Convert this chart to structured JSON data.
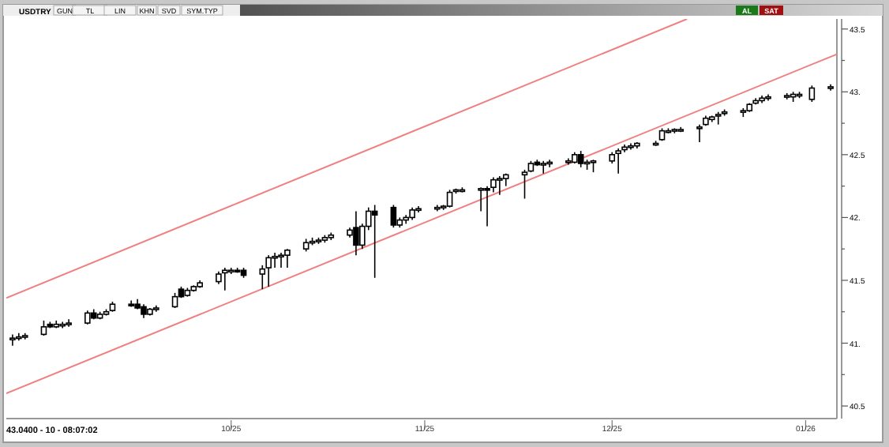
{
  "chart_data": {
    "type": "candlestick",
    "title": "USDTRY",
    "annotations": [
      "GUN",
      "TL",
      "LIN",
      "KHN",
      "SVD",
      "SYM.TYP",
      "AL",
      "SAT",
      "43.0400 - 10 - 08:07:02"
    ],
    "xlim": [
      "2025-08-26",
      "2026-01-06"
    ],
    "xticks": [
      {
        "value": "2025-10-01",
        "label": "10/25"
      },
      {
        "value": "2025-11-01",
        "label": "11/25"
      },
      {
        "value": "2025-12-01",
        "label": "12/25"
      },
      {
        "value": "2026-01-01",
        "label": "01/26"
      }
    ],
    "ylim": [
      40.4,
      43.58
    ],
    "yticks": [
      {
        "value": 40.5,
        "label": "40.5"
      },
      {
        "value": 40.75,
        "label": null
      },
      {
        "value": 41,
        "label": "41."
      },
      {
        "value": 41.25,
        "label": null
      },
      {
        "value": 41.5,
        "label": "41.5"
      },
      {
        "value": 41.75,
        "label": null
      },
      {
        "value": 42,
        "label": "42."
      },
      {
        "value": 42.25,
        "label": null
      },
      {
        "value": 42.5,
        "label": "42.5"
      },
      {
        "value": 42.75,
        "label": null
      },
      {
        "value": 43,
        "label": "43."
      },
      {
        "value": 43.25,
        "label": null
      },
      {
        "value": 43.5,
        "label": "43.5"
      }
    ],
    "series": [
      {
        "type": "candlestick",
        "color": "#000000",
        "x": [
          "2025-08-27",
          "2025-08-28",
          "2025-08-29",
          "2025-09-01",
          "2025-09-02",
          "2025-09-03",
          "2025-09-04",
          "2025-09-05",
          "2025-09-08",
          "2025-09-09",
          "2025-09-10",
          "2025-09-11",
          "2025-09-12",
          "2025-09-15",
          "2025-09-16",
          "2025-09-17",
          "2025-09-18",
          "2025-09-19",
          "2025-09-22",
          "2025-09-23",
          "2025-09-24",
          "2025-09-25",
          "2025-09-26",
          "2025-09-29",
          "2025-09-30",
          "2025-10-01",
          "2025-10-02",
          "2025-10-03",
          "2025-10-06",
          "2025-10-07",
          "2025-10-08",
          "2025-10-09",
          "2025-10-10",
          "2025-10-13",
          "2025-10-14",
          "2025-10-15",
          "2025-10-16",
          "2025-10-17",
          "2025-10-20",
          "2025-10-21",
          "2025-10-22",
          "2025-10-23",
          "2025-10-24",
          "2025-10-27",
          "2025-10-28",
          "2025-10-29",
          "2025-10-30",
          "2025-10-31",
          "2025-11-03",
          "2025-11-04",
          "2025-11-05",
          "2025-11-06",
          "2025-11-07",
          "2025-11-10",
          "2025-11-11",
          "2025-11-12",
          "2025-11-13",
          "2025-11-14",
          "2025-11-17",
          "2025-11-18",
          "2025-11-19",
          "2025-11-20",
          "2025-11-21",
          "2025-11-24",
          "2025-11-25",
          "2025-11-26",
          "2025-11-27",
          "2025-11-28",
          "2025-12-01",
          "2025-12-02",
          "2025-12-03",
          "2025-12-04",
          "2025-12-05",
          "2025-12-08",
          "2025-12-09",
          "2025-12-10",
          "2025-12-11",
          "2025-12-12",
          "2025-12-15",
          "2025-12-16",
          "2025-12-17",
          "2025-12-18",
          "2025-12-19",
          "2025-12-22",
          "2025-12-23",
          "2025-12-24",
          "2025-12-25",
          "2025-12-26",
          "2025-12-29",
          "2025-12-30",
          "2025-12-31",
          "2026-01-02",
          "2026-01-05"
        ],
        "ohlc": [
          [
            41.03,
            41.07,
            40.98,
            41.04
          ],
          [
            41.04,
            41.08,
            41.02,
            41.05
          ],
          [
            41.05,
            41.08,
            41.03,
            41.06
          ],
          [
            41.07,
            41.18,
            41.06,
            41.13
          ],
          [
            41.15,
            41.17,
            41.12,
            41.13
          ],
          [
            41.13,
            41.18,
            41.12,
            41.15
          ],
          [
            41.14,
            41.17,
            41.12,
            41.15
          ],
          [
            41.15,
            41.19,
            41.13,
            41.16
          ],
          [
            41.16,
            41.26,
            41.15,
            41.24
          ],
          [
            41.24,
            41.27,
            41.19,
            41.2
          ],
          [
            41.2,
            41.25,
            41.19,
            41.23
          ],
          [
            41.23,
            41.27,
            41.22,
            41.25
          ],
          [
            41.26,
            41.33,
            41.25,
            41.31
          ],
          [
            41.31,
            41.34,
            41.29,
            41.3
          ],
          [
            41.31,
            41.35,
            41.27,
            41.28
          ],
          [
            41.29,
            41.31,
            41.2,
            41.23
          ],
          [
            41.23,
            41.28,
            41.22,
            41.27
          ],
          [
            41.27,
            41.3,
            41.25,
            41.28
          ],
          [
            41.29,
            41.4,
            41.28,
            41.37
          ],
          [
            41.43,
            41.45,
            41.36,
            41.37
          ],
          [
            41.38,
            41.44,
            41.37,
            41.42
          ],
          [
            41.42,
            41.46,
            41.41,
            41.45
          ],
          [
            41.45,
            41.5,
            41.44,
            41.48
          ],
          [
            41.49,
            41.57,
            41.47,
            41.55
          ],
          [
            41.56,
            41.6,
            41.42,
            41.58
          ],
          [
            41.58,
            41.6,
            41.55,
            41.58
          ],
          [
            41.58,
            41.6,
            41.56,
            41.57
          ],
          [
            41.58,
            41.6,
            41.52,
            41.54
          ],
          [
            41.55,
            41.62,
            41.43,
            41.59
          ],
          [
            41.6,
            41.7,
            41.45,
            41.68
          ],
          [
            41.68,
            41.72,
            41.6,
            41.69
          ],
          [
            41.69,
            41.72,
            41.6,
            41.7
          ],
          [
            41.7,
            41.75,
            41.6,
            41.74
          ],
          [
            41.75,
            41.83,
            41.73,
            41.8
          ],
          [
            41.8,
            41.84,
            41.78,
            41.81
          ],
          [
            41.81,
            41.84,
            41.79,
            41.82
          ],
          [
            41.82,
            41.86,
            41.8,
            41.84
          ],
          [
            41.84,
            41.88,
            41.82,
            41.86
          ],
          [
            41.86,
            41.92,
            41.84,
            41.9
          ],
          [
            41.92,
            42.05,
            41.7,
            41.78
          ],
          [
            41.78,
            41.95,
            41.75,
            41.93
          ],
          [
            41.93,
            42.08,
            41.9,
            42.05
          ],
          [
            42.05,
            42.1,
            41.52,
            42.02
          ],
          [
            42.08,
            42.1,
            41.92,
            41.94
          ],
          [
            41.94,
            42,
            41.92,
            41.98
          ],
          [
            41.98,
            42.02,
            41.95,
            42
          ],
          [
            42,
            42.08,
            41.98,
            42.06
          ],
          [
            42.06,
            42.09,
            42.04,
            42.07
          ],
          [
            42.07,
            42.1,
            42.05,
            42.08
          ],
          [
            42.08,
            42.1,
            42.06,
            42.09
          ],
          [
            42.09,
            42.22,
            42.08,
            42.2
          ],
          [
            42.21,
            42.23,
            42.19,
            42.22
          ],
          [
            42.22,
            42.24,
            42.2,
            42.22
          ],
          [
            42.22,
            42.24,
            42.05,
            42.23
          ],
          [
            42.23,
            42.25,
            41.93,
            42.22
          ],
          [
            42.24,
            42.32,
            42.2,
            42.3
          ],
          [
            42.3,
            42.33,
            42.18,
            42.31
          ],
          [
            42.31,
            42.35,
            42.25,
            42.34
          ],
          [
            42.34,
            42.38,
            42.15,
            42.36
          ],
          [
            42.37,
            42.45,
            42.36,
            42.43
          ],
          [
            42.44,
            42.46,
            42.41,
            42.42
          ],
          [
            42.42,
            42.45,
            42.35,
            42.43
          ],
          [
            42.43,
            42.46,
            42.4,
            42.44
          ],
          [
            42.44,
            42.47,
            42.42,
            42.45
          ],
          [
            42.44,
            42.52,
            42.43,
            42.5
          ],
          [
            42.5,
            42.53,
            42.4,
            42.43
          ],
          [
            42.43,
            42.46,
            42.38,
            42.44
          ],
          [
            42.44,
            42.46,
            42.36,
            42.45
          ],
          [
            42.45,
            42.52,
            42.43,
            42.5
          ],
          [
            42.51,
            42.55,
            42.35,
            42.53
          ],
          [
            42.54,
            42.58,
            42.52,
            42.56
          ],
          [
            42.56,
            42.59,
            42.54,
            42.57
          ],
          [
            42.57,
            42.6,
            42.55,
            42.59
          ],
          [
            42.59,
            42.61,
            42.57,
            42.59
          ],
          [
            42.62,
            42.71,
            42.61,
            42.69
          ],
          [
            42.69,
            42.71,
            42.67,
            42.69
          ],
          [
            42.69,
            42.71,
            42.67,
            42.7
          ],
          [
            42.7,
            42.72,
            42.68,
            42.7
          ],
          [
            42.71,
            42.74,
            42.6,
            42.72
          ],
          [
            42.74,
            42.81,
            42.73,
            42.79
          ],
          [
            42.78,
            42.81,
            42.76,
            42.8
          ],
          [
            42.81,
            42.84,
            42.74,
            42.82
          ],
          [
            42.83,
            42.86,
            42.81,
            42.84
          ],
          [
            42.84,
            42.87,
            42.8,
            42.85
          ],
          [
            42.85,
            42.91,
            42.84,
            42.9
          ],
          [
            42.91,
            42.95,
            42.9,
            42.93
          ],
          [
            42.93,
            42.97,
            42.91,
            42.95
          ],
          [
            42.95,
            42.98,
            42.93,
            42.96
          ],
          [
            42.96,
            42.99,
            42.94,
            42.97
          ],
          [
            42.96,
            43,
            42.92,
            42.98
          ],
          [
            42.97,
            43,
            42.95,
            42.98
          ],
          [
            42.94,
            43.05,
            42.92,
            43.03
          ],
          [
            43.03,
            43.06,
            43.01,
            43.04
          ]
        ]
      },
      {
        "type": "line",
        "color": "#f08080",
        "x": [
          "2025-08-26",
          "2025-12-13"
        ],
        "values": [
          41.36,
          43.58
        ]
      },
      {
        "type": "line",
        "color": "#f08080",
        "x": [
          "2025-08-26",
          "2026-01-06"
        ],
        "values": [
          40.6,
          43.3
        ]
      }
    ]
  }
}
